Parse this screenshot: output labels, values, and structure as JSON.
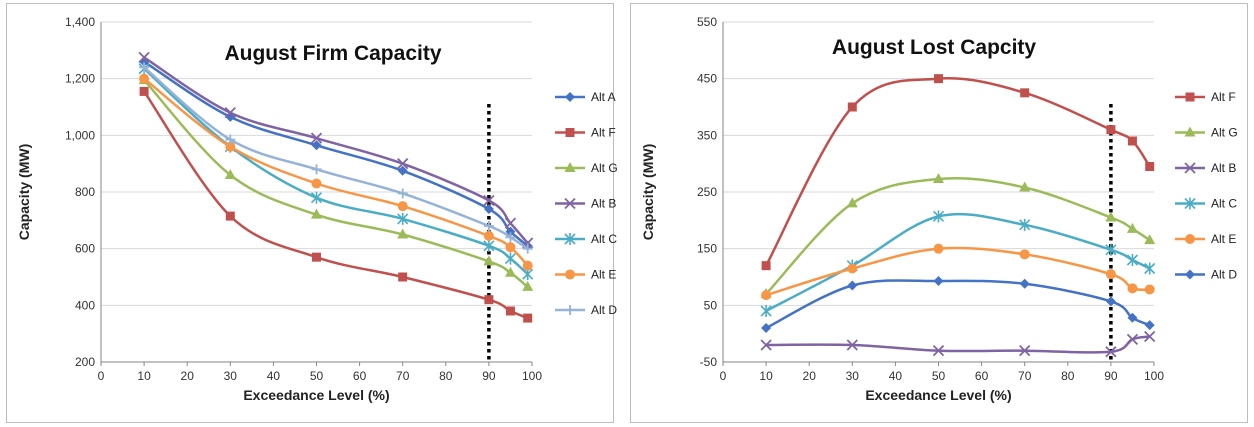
{
  "chart_data": [
    {
      "type": "line",
      "title": "August Firm Capacity",
      "xlabel": "Exceedance Level (%)",
      "ylabel": "Capacity (MW)",
      "xlim": [
        0,
        100
      ],
      "ylim": [
        200,
        1400
      ],
      "xticks": [
        "0",
        "10",
        "20",
        "30",
        "40",
        "50",
        "60",
        "70",
        "80",
        "90",
        "100"
      ],
      "yticks": [
        "200",
        "400",
        "600",
        "800",
        "1,000",
        "1,200",
        "1,400"
      ],
      "x": [
        10,
        30,
        50,
        70,
        90,
        95,
        99
      ],
      "reference_line_x": 90,
      "grid": "horizontal",
      "legend": "right",
      "series": [
        {
          "name": "Alt A",
          "color": "#4472C4",
          "marker": "diamond",
          "values": [
            1260,
            1065,
            965,
            875,
            740,
            660,
            610
          ]
        },
        {
          "name": "Alt F",
          "color": "#C0504D",
          "marker": "square",
          "values": [
            1155,
            715,
            570,
            500,
            420,
            380,
            355
          ]
        },
        {
          "name": "Alt G",
          "color": "#9BBB59",
          "marker": "triangle",
          "values": [
            1195,
            860,
            720,
            650,
            555,
            515,
            465
          ]
        },
        {
          "name": "Alt B",
          "color": "#8064A2",
          "marker": "x",
          "values": [
            1275,
            1080,
            990,
            900,
            770,
            690,
            620
          ]
        },
        {
          "name": "Alt C",
          "color": "#4BACC6",
          "marker": "star",
          "values": [
            1235,
            960,
            780,
            705,
            610,
            565,
            510
          ]
        },
        {
          "name": "Alt E",
          "color": "#F79646",
          "marker": "circle",
          "values": [
            1200,
            960,
            830,
            750,
            645,
            605,
            540
          ]
        },
        {
          "name": "Alt D",
          "color": "#95B3D7",
          "marker": "plus",
          "values": [
            1240,
            985,
            880,
            795,
            680,
            640,
            600
          ]
        }
      ]
    },
    {
      "type": "line",
      "title": "August Lost Capcity",
      "xlabel": "Exceedance Level (%)",
      "ylabel": "Capacity (MW)",
      "xlim": [
        0,
        100
      ],
      "ylim": [
        -50,
        550
      ],
      "xticks": [
        "0",
        "10",
        "20",
        "30",
        "40",
        "50",
        "60",
        "70",
        "80",
        "90",
        "100"
      ],
      "yticks": [
        "-50",
        "50",
        "150",
        "250",
        "350",
        "450",
        "550"
      ],
      "x": [
        10,
        30,
        50,
        70,
        90,
        95,
        99
      ],
      "reference_line_x": 90,
      "grid": "horizontal",
      "legend": "right",
      "series": [
        {
          "name": "Alt F",
          "color": "#C0504D",
          "marker": "square",
          "values": [
            120,
            400,
            450,
            425,
            360,
            340,
            295
          ]
        },
        {
          "name": "Alt G",
          "color": "#9BBB59",
          "marker": "triangle",
          "values": [
            70,
            230,
            273,
            258,
            205,
            185,
            165
          ]
        },
        {
          "name": "Alt B",
          "color": "#8064A2",
          "marker": "x",
          "values": [
            -20,
            -20,
            -30,
            -30,
            -32,
            -10,
            -5
          ]
        },
        {
          "name": "Alt C",
          "color": "#4BACC6",
          "marker": "star",
          "values": [
            40,
            120,
            207,
            192,
            148,
            130,
            115
          ]
        },
        {
          "name": "Alt E",
          "color": "#F79646",
          "marker": "circle",
          "values": [
            68,
            115,
            150,
            140,
            105,
            80,
            78
          ]
        },
        {
          "name": "Alt D",
          "color": "#4472C4",
          "marker": "diamond",
          "values": [
            10,
            85,
            93,
            88,
            57,
            28,
            15
          ]
        }
      ]
    }
  ]
}
